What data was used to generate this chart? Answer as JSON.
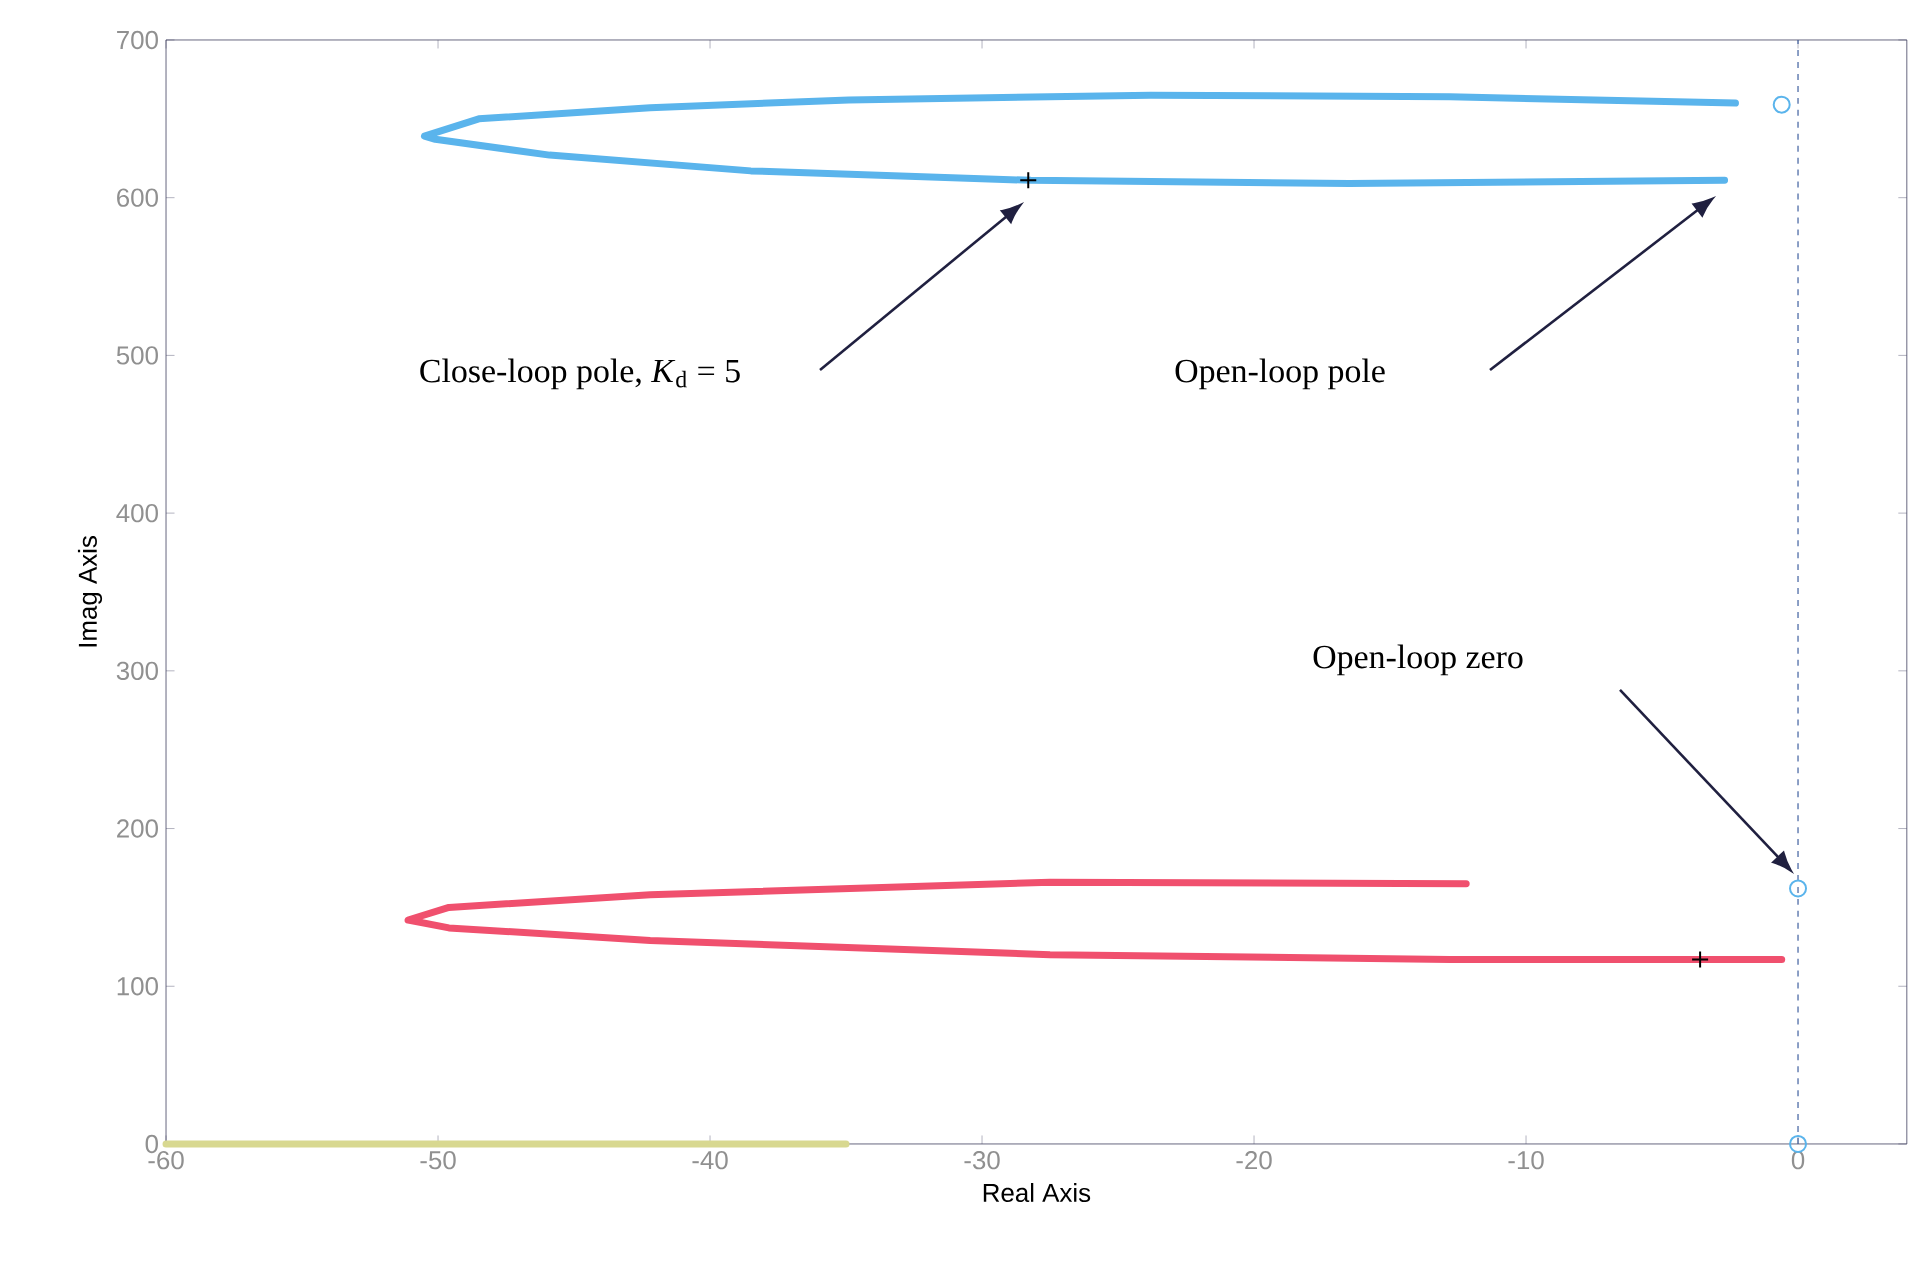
{
  "chart_data": {
    "type": "line",
    "xlabel": "Real Axis",
    "ylabel": "Imag Axis",
    "xlim": [
      -60,
      4
    ],
    "ylim": [
      0,
      700
    ],
    "xticks": [
      -60,
      -50,
      -40,
      -30,
      -20,
      -10,
      0
    ],
    "yticks": [
      0,
      100,
      200,
      300,
      400,
      500,
      600,
      700
    ],
    "series": [
      {
        "color": "#5ab4ec",
        "x": [
          -2.7,
          -16.5,
          -28.2,
          -38.5,
          -45.9,
          -50.1,
          -50.5,
          -48.5,
          -42.2,
          -34.9,
          -23.8,
          -12.8,
          -2.3
        ],
        "values": [
          611,
          609,
          611,
          617,
          627,
          637,
          639,
          650,
          657,
          662,
          665,
          664,
          660
        ]
      },
      {
        "color": "#f0506e",
        "x": [
          -0.6,
          -12.8,
          -27.5,
          -42.2,
          -49.6,
          -51.1,
          -49.6,
          -42.2,
          -27.5,
          -12.2
        ],
        "values": [
          117,
          117,
          120,
          129,
          137,
          142,
          150,
          158,
          166,
          165
        ]
      },
      {
        "color": "#d8d890",
        "x": [
          -60,
          -35
        ],
        "values": [
          0,
          0
        ]
      },
      {
        "type": "scatter",
        "marker": "circle",
        "color": "#5ab4ec",
        "x": [
          -0.6,
          0,
          0
        ],
        "values": [
          659,
          162,
          0
        ]
      },
      {
        "type": "scatter",
        "marker": "cross",
        "color": "#000000",
        "x": [
          -28.3,
          -3.6
        ],
        "values": [
          611,
          117
        ]
      }
    ],
    "ref_lines": [
      {
        "axis": "x",
        "value": 0,
        "color": "#4060a0",
        "line_style": "dashed"
      }
    ],
    "annotations": [
      "Close-loop pole, *K*$_{d}$ = 5",
      "Open-loop pole",
      "Open-loop zero"
    ]
  }
}
